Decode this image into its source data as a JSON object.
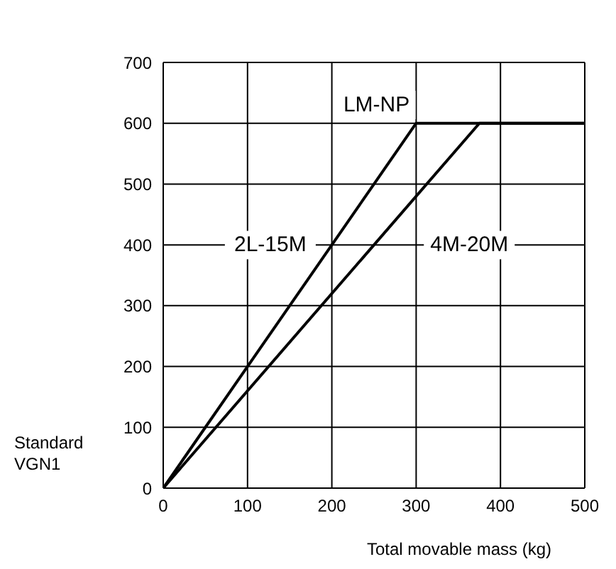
{
  "chart_data": {
    "type": "line",
    "xlabel": "Total movable mass (kg)",
    "ylabel": "Standard VGN1",
    "xlim": [
      0,
      500
    ],
    "xticks": [
      0,
      100,
      200,
      300,
      400,
      500
    ],
    "ylim": [
      0,
      700
    ],
    "yticks": [
      0,
      100,
      200,
      300,
      400,
      500,
      600,
      700
    ],
    "grid": true,
    "legend": false,
    "marker": "none",
    "line_style": "solid",
    "series": [
      {
        "name": "2L-15M",
        "color": "#000000",
        "x": [
          0,
          300,
          500
        ],
        "values": [
          0,
          600,
          600
        ]
      },
      {
        "name": "4M-20M",
        "color": "#000000",
        "x": [
          0,
          375,
          500
        ],
        "values": [
          0,
          600,
          600
        ]
      }
    ],
    "annotations": [
      "LM-NP"
    ]
  }
}
